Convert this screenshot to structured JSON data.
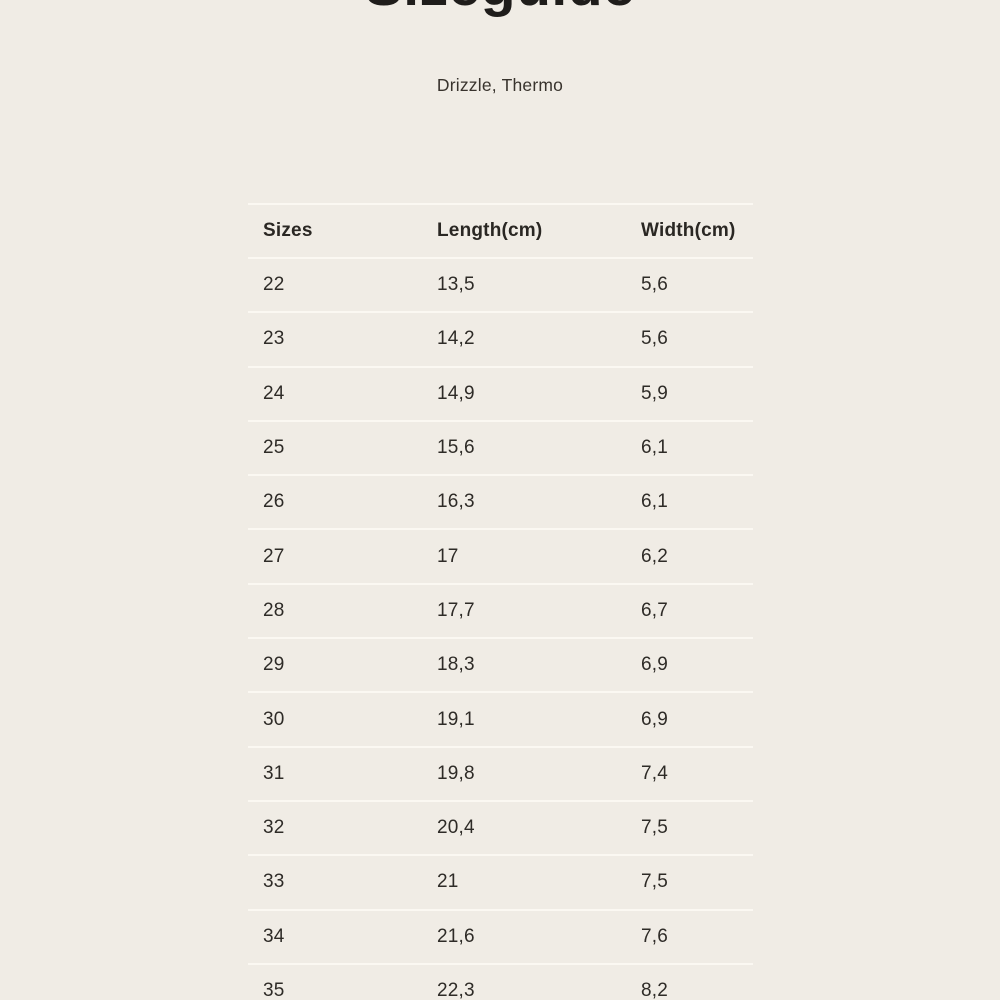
{
  "page": {
    "title": "Sizeguide",
    "subtitle": "Drizzle, Thermo"
  },
  "table": {
    "columns": [
      "Sizes",
      "Length(cm)",
      "Width(cm)"
    ],
    "rows": [
      {
        "size": "22",
        "length": "13,5",
        "width": "5,6"
      },
      {
        "size": "23",
        "length": "14,2",
        "width": "5,6"
      },
      {
        "size": "24",
        "length": "14,9",
        "width": "5,9"
      },
      {
        "size": "25",
        "length": "15,6",
        "width": "6,1"
      },
      {
        "size": "26",
        "length": "16,3",
        "width": "6,1"
      },
      {
        "size": "27",
        "length": "17",
        "width": "6,2"
      },
      {
        "size": "28",
        "length": "17,7",
        "width": "6,7"
      },
      {
        "size": "29",
        "length": "18,3",
        "width": "6,9"
      },
      {
        "size": "30",
        "length": "19,1",
        "width": "6,9"
      },
      {
        "size": "31",
        "length": "19,8",
        "width": "7,4"
      },
      {
        "size": "32",
        "length": "20,4",
        "width": "7,5"
      },
      {
        "size": "33",
        "length": "21",
        "width": "7,5"
      },
      {
        "size": "34",
        "length": "21,6",
        "width": "7,6"
      },
      {
        "size": "35",
        "length": "22,3",
        "width": "8,2"
      }
    ]
  },
  "colors": {
    "background": "#f0ece5",
    "divider": "#fbf8f2",
    "text": "#2e2b27",
    "title": "#1f1d1b"
  }
}
